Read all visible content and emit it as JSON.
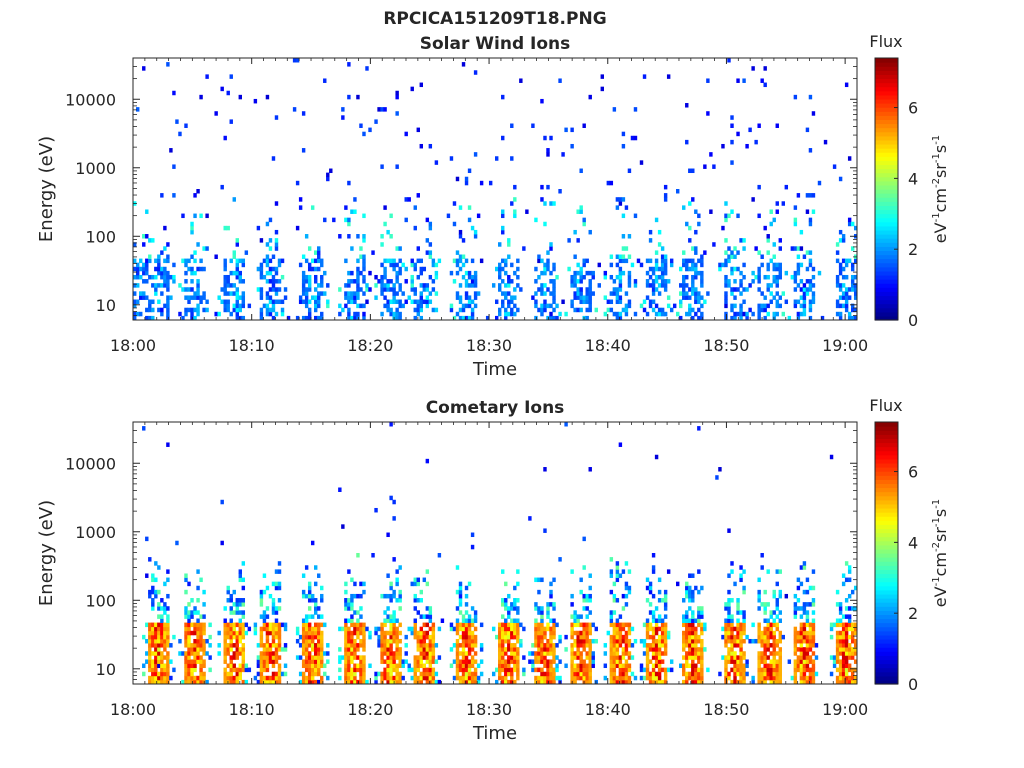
{
  "figure": {
    "title": "RPCICA151209T18.PNG"
  },
  "chart_data": [
    {
      "type": "heatmap",
      "title": "Solar Wind Ions",
      "xlabel": "Time",
      "ylabel": "Energy (eV)",
      "x_ticks": [
        "18:00",
        "18:10",
        "18:20",
        "18:30",
        "18:40",
        "18:50",
        "19:00"
      ],
      "x_range": [
        "18:00",
        "19:01"
      ],
      "y_scale": "log",
      "y_ticks": [
        "10",
        "100",
        "1000",
        "10000"
      ],
      "y_range": [
        6,
        40000
      ],
      "colorbar": {
        "title": "Flux",
        "unit": "eV-1cm-2sr-1s-1",
        "range": [
          0,
          7.4
        ],
        "ticks": [
          "0",
          "2",
          "4",
          "6"
        ]
      },
      "pulse_minutes": [
        0.5,
        2,
        5,
        8.5,
        11.5,
        15,
        18.5,
        21.5,
        24.5,
        28,
        31.5,
        34.5,
        37.5,
        41,
        44,
        47,
        50.5,
        53.5,
        56.5,
        60
      ],
      "seed": 11,
      "band_level": 1.6,
      "band_spread": 1.0,
      "band_density": 0.45,
      "mid_density": 0.18,
      "background_density": 0.018,
      "peak_level": 3.2
    },
    {
      "type": "heatmap",
      "title": "Cometary Ions",
      "xlabel": "Time",
      "ylabel": "Energy (eV)",
      "x_ticks": [
        "18:00",
        "18:10",
        "18:20",
        "18:30",
        "18:40",
        "18:50",
        "19:00"
      ],
      "x_range": [
        "18:00",
        "19:01"
      ],
      "y_scale": "log",
      "y_ticks": [
        "10",
        "100",
        "1000",
        "10000"
      ],
      "y_range": [
        6,
        40000
      ],
      "colorbar": {
        "title": "Flux",
        "unit": "eV-1cm-2sr-1s-1",
        "range": [
          0,
          7.4
        ],
        "ticks": [
          "0",
          "2",
          "4",
          "6"
        ]
      },
      "pulse_minutes": [
        2,
        5,
        8.5,
        11.5,
        15,
        18.5,
        21.5,
        24.5,
        28,
        31.5,
        34.5,
        37.5,
        41,
        44,
        47,
        50.5,
        53.5,
        56.5,
        60
      ],
      "seed": 29,
      "band_level": 5.2,
      "band_spread": 1.6,
      "band_density": 0.85,
      "mid_density": 0.5,
      "background_density": 0.004,
      "peak_level": 6.8
    }
  ]
}
